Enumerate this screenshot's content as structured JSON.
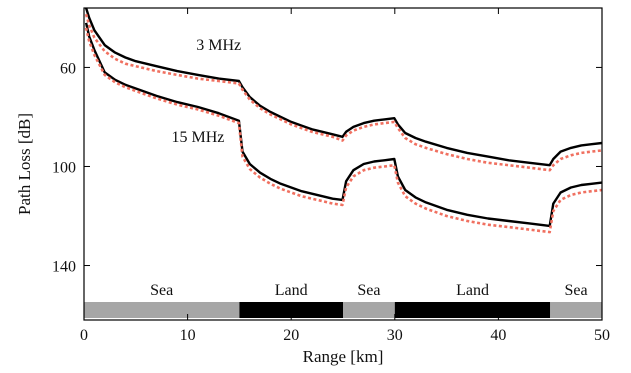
{
  "chart_data": {
    "type": "line",
    "xlabel": "Range [km]",
    "ylabel": "Path Loss [dB]",
    "xlim": [
      0,
      50
    ],
    "ylim": [
      36,
      162
    ],
    "y_inverted": true,
    "x_ticks": [
      0,
      10,
      20,
      30,
      40,
      50
    ],
    "y_ticks": [
      60,
      100,
      140
    ],
    "grid": false,
    "colors": {
      "solid": "#000000",
      "dashed": "#f07060",
      "sea": "#a6a6a6",
      "land": "#000000"
    },
    "annotations": [
      {
        "text": "3 MHz",
        "x": 13,
        "y": 51
      },
      {
        "text": "15 MHz",
        "x": 11,
        "y": 88
      }
    ],
    "terrain": [
      {
        "label": "Sea",
        "type": "sea",
        "x0": 0,
        "x1": 15
      },
      {
        "label": "Land",
        "type": "land",
        "x0": 15,
        "x1": 25
      },
      {
        "label": "Sea",
        "type": "sea",
        "x0": 25,
        "x1": 30
      },
      {
        "label": "Land",
        "type": "land",
        "x0": 30,
        "x1": 45
      },
      {
        "label": "Sea",
        "type": "sea",
        "x0": 45,
        "x1": 50
      }
    ],
    "series": [
      {
        "group": "3 MHz",
        "style": "solid",
        "x": [
          0.2,
          0.5,
          1,
          2,
          3,
          4,
          5,
          7,
          9,
          11,
          13,
          14.95,
          15.3,
          16,
          17,
          18,
          19,
          20,
          21,
          22,
          23,
          24,
          24.95,
          25.3,
          26,
          27,
          28,
          29,
          29.95,
          30.3,
          31,
          32,
          33,
          35,
          37,
          39,
          41,
          43,
          44.95,
          45.3,
          46,
          47,
          48,
          49,
          50
        ],
        "y": [
          36,
          40,
          45,
          51,
          54,
          56,
          57.5,
          59.5,
          61.5,
          63,
          64.5,
          65.5,
          68,
          72,
          75.5,
          78,
          80,
          82,
          83.5,
          85,
          86,
          87,
          88,
          86,
          84,
          82.5,
          81.5,
          81,
          80.5,
          83,
          86.5,
          88.5,
          90,
          92.5,
          94.5,
          96,
          97.5,
          98.5,
          99.5,
          97,
          94,
          92.5,
          91.5,
          91,
          90.5
        ]
      },
      {
        "group": "3 MHz",
        "style": "dashed",
        "x": [
          0.2,
          0.5,
          1,
          2,
          3,
          4,
          5,
          7,
          9,
          11,
          13,
          14.95,
          15.3,
          16,
          17,
          18,
          19,
          20,
          21,
          22,
          23,
          24,
          24.95,
          25.3,
          26,
          27,
          28,
          29,
          29.95,
          30.3,
          31,
          32,
          33,
          35,
          37,
          39,
          41,
          43,
          44.95,
          45.3,
          46,
          47,
          48,
          49,
          50
        ],
        "y": [
          38.5,
          43,
          48,
          53.5,
          56.5,
          58.5,
          59.5,
          61.5,
          63,
          64.5,
          65.5,
          66.5,
          69,
          73,
          76.5,
          79,
          81,
          83,
          84.5,
          86,
          87,
          88,
          89.5,
          87.5,
          85.5,
          84,
          83,
          82.5,
          82,
          84.5,
          88.5,
          91,
          92.5,
          95,
          97,
          98.5,
          99.5,
          100.5,
          101.5,
          99.5,
          97,
          95.5,
          94.5,
          94,
          93.5
        ]
      },
      {
        "group": "15 MHz",
        "style": "solid",
        "x": [
          0.2,
          0.5,
          1,
          2,
          3,
          4,
          5,
          7,
          9,
          11,
          13,
          14.95,
          15.3,
          16,
          17,
          18,
          19,
          20,
          21,
          22,
          23,
          24,
          24.95,
          25.3,
          26,
          27,
          28,
          29,
          29.95,
          30.3,
          31,
          32,
          33,
          35,
          37,
          39,
          41,
          43,
          44.95,
          45.3,
          46,
          47,
          48,
          49,
          50
        ],
        "y": [
          42,
          47.5,
          53,
          62,
          65,
          67,
          68.5,
          71.5,
          74,
          76,
          78.5,
          81.5,
          94,
          99,
          102.5,
          105,
          107,
          108.5,
          110,
          111,
          112,
          113,
          113.5,
          106,
          101.5,
          99,
          98,
          97.5,
          97,
          104,
          109.5,
          112.5,
          114.5,
          117.5,
          119.5,
          121,
          122,
          123,
          124,
          115,
          110.5,
          108.5,
          107.5,
          107,
          106.5
        ]
      },
      {
        "group": "15 MHz",
        "style": "dashed",
        "x": [
          0.2,
          0.5,
          1,
          2,
          3,
          4,
          5,
          7,
          9,
          11,
          13,
          14.95,
          15.3,
          16,
          17,
          18,
          19,
          20,
          21,
          22,
          23,
          24,
          24.95,
          25.3,
          26,
          27,
          28,
          29,
          29.95,
          30.3,
          31,
          32,
          33,
          35,
          37,
          39,
          41,
          43,
          44.95,
          45.3,
          46,
          47,
          48,
          49,
          50
        ],
        "y": [
          44,
          49.5,
          55,
          63,
          66,
          68,
          69.5,
          72.5,
          75,
          77,
          79.5,
          82.5,
          96,
          101,
          104.5,
          107,
          109,
          110.5,
          112,
          113,
          114,
          115,
          115.5,
          108.5,
          104,
          101.5,
          100.5,
          100,
          99.5,
          106.5,
          112,
          115,
          117,
          120,
          122,
          123.5,
          124.5,
          125.5,
          126.5,
          118,
          113.5,
          111.5,
          110.5,
          110,
          109.5
        ]
      }
    ]
  }
}
